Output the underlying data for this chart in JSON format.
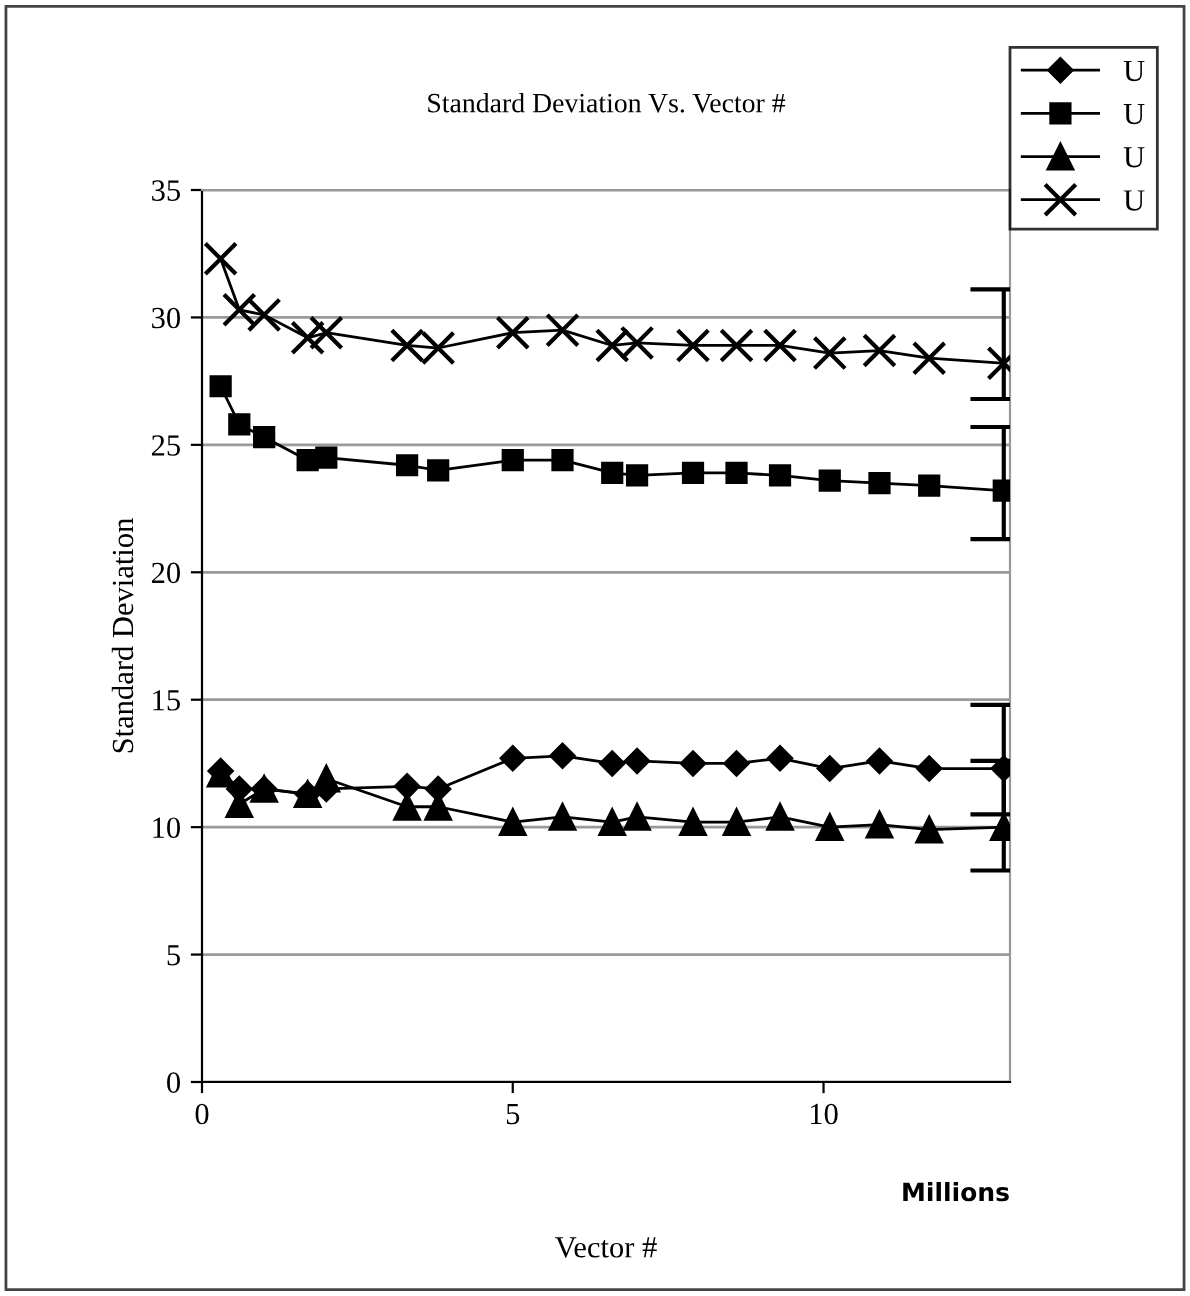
{
  "chart_data": {
    "type": "line",
    "title": "Standard Deviation Vs. Vector #",
    "xlabel": "Vector #",
    "ylabel": "Standard Deviation",
    "annotations": [
      "Millions"
    ],
    "x": [
      0.3,
      0.6,
      1.0,
      1.7,
      2.0,
      3.3,
      3.8,
      5.0,
      5.8,
      6.6,
      7.0,
      7.9,
      8.6,
      9.3,
      10.1,
      10.9,
      11.7,
      12.9
    ],
    "series": [
      {
        "name": "U",
        "color": "#000000",
        "marker": "diamond",
        "values": [
          12.2,
          11.5,
          11.5,
          11.3,
          11.5,
          11.6,
          11.5,
          12.7,
          12.8,
          12.5,
          12.6,
          12.5,
          12.5,
          12.7,
          12.3,
          12.6,
          12.3,
          12.3
        ],
        "errors": [
          null,
          null,
          null,
          null,
          null,
          null,
          null,
          null,
          null,
          null,
          null,
          null,
          null,
          null,
          null,
          null,
          null,
          [
            10.5,
            14.8
          ]
        ]
      },
      {
        "name": "U",
        "color": "#000000",
        "marker": "square",
        "values": [
          27.3,
          25.8,
          25.3,
          24.4,
          24.5,
          24.2,
          24.0,
          24.4,
          24.4,
          23.9,
          23.8,
          23.9,
          23.9,
          23.8,
          23.6,
          23.5,
          23.4,
          23.2
        ],
        "errors": [
          null,
          null,
          null,
          null,
          null,
          null,
          null,
          null,
          null,
          null,
          null,
          null,
          null,
          null,
          null,
          null,
          null,
          [
            21.3,
            25.7
          ]
        ]
      },
      {
        "name": "U",
        "color": "#000000",
        "marker": "triangle",
        "values": [
          12.1,
          10.9,
          11.5,
          11.3,
          11.9,
          10.8,
          10.8,
          10.2,
          10.4,
          10.2,
          10.4,
          10.2,
          10.2,
          10.4,
          10.0,
          10.1,
          9.9,
          10.0
        ],
        "errors": [
          null,
          null,
          null,
          null,
          null,
          null,
          null,
          null,
          null,
          null,
          null,
          null,
          null,
          null,
          null,
          null,
          null,
          [
            8.3,
            12.6
          ]
        ]
      },
      {
        "name": "U",
        "color": "#000000",
        "marker": "cross",
        "values": [
          32.3,
          30.3,
          30.1,
          29.2,
          29.4,
          28.9,
          28.8,
          29.4,
          29.5,
          28.9,
          29.0,
          28.9,
          28.9,
          28.9,
          28.6,
          28.7,
          28.4,
          28.2
        ],
        "errors": [
          null,
          null,
          null,
          null,
          null,
          null,
          null,
          null,
          null,
          null,
          null,
          null,
          null,
          null,
          null,
          null,
          null,
          [
            26.8,
            31.1
          ]
        ]
      }
    ],
    "xlim": [
      0,
      13
    ],
    "xticks": [
      0,
      5,
      10
    ],
    "ylim": [
      0,
      35
    ],
    "yticks": [
      0,
      5,
      10,
      15,
      20,
      25,
      30,
      35
    ],
    "grid": "y",
    "legend": "top right",
    "line_style": "solid"
  }
}
